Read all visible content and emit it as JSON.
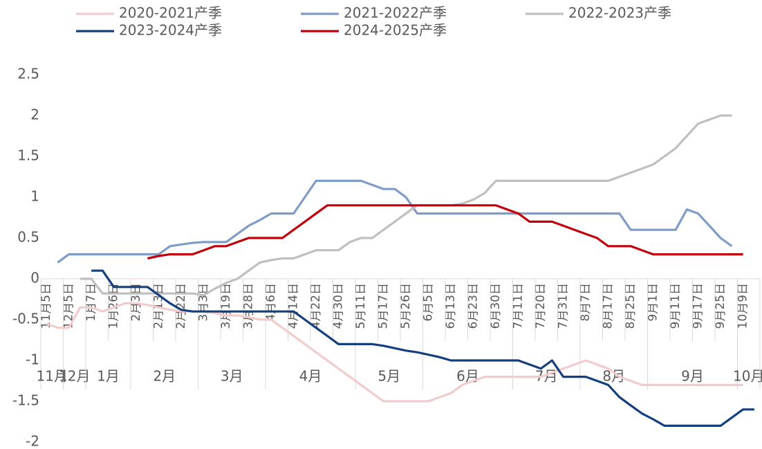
{
  "chart_data": {
    "type": "line",
    "categories": [
      "11月5日",
      null,
      "12月5日",
      null,
      "1月7日",
      null,
      "1月26日",
      null,
      "2月3日",
      null,
      "2月13日",
      null,
      "2月22日",
      null,
      "3月3日",
      null,
      "3月19日",
      null,
      "3月28日",
      null,
      "4月6日",
      null,
      "4月14日",
      null,
      "4月22日",
      null,
      "4月30日",
      null,
      "5月11日",
      null,
      "5月17日",
      null,
      "5月26日",
      null,
      "6月5日",
      null,
      "6月13日",
      null,
      "6月23日",
      null,
      "6月30日",
      null,
      "7月11日",
      null,
      "7月20日",
      null,
      "7月31日",
      null,
      "8月7日",
      null,
      "8月17日",
      null,
      "8月25日",
      null,
      "9月1日",
      null,
      "9月11日",
      null,
      "9月17日",
      null,
      "9月25日",
      null,
      "10月9日",
      null
    ],
    "groups": [
      {
        "label": "11月",
        "count": 2
      },
      {
        "label": "12月",
        "count": 2
      },
      {
        "label": "1月",
        "count": 4
      },
      {
        "label": "2月",
        "count": 6
      },
      {
        "label": "3月",
        "count": 6
      },
      {
        "label": "4月",
        "count": 8
      },
      {
        "label": "5月",
        "count": 6
      },
      {
        "label": "6月",
        "count": 8
      },
      {
        "label": "7月",
        "count": 6
      },
      {
        "label": "8月",
        "count": 6
      },
      {
        "label": "9月",
        "count": 8
      },
      {
        "label": "10月",
        "count": 2
      }
    ],
    "series": [
      {
        "name": "2020-2021产季",
        "color": "#f2cccc",
        "values": [
          -0.55,
          -0.6,
          -0.6,
          -0.35,
          -0.35,
          -0.4,
          -0.35,
          -0.3,
          -0.3,
          -0.32,
          -0.35,
          -0.38,
          -0.4,
          -0.4,
          -0.4,
          -0.42,
          -0.45,
          -0.45,
          -0.47,
          -0.5,
          -0.5,
          -0.6,
          -0.7,
          -0.8,
          -0.9,
          -1.0,
          -1.1,
          -1.2,
          -1.3,
          -1.4,
          -1.5,
          -1.5,
          -1.5,
          -1.5,
          -1.5,
          -1.45,
          -1.4,
          -1.3,
          -1.25,
          -1.2,
          -1.2,
          -1.2,
          -1.2,
          -1.2,
          -1.2,
          -1.15,
          -1.1,
          -1.05,
          -1.0,
          -1.05,
          -1.1,
          -1.2,
          -1.25,
          -1.3,
          -1.3,
          -1.3,
          -1.3,
          -1.3,
          -1.3,
          -1.3,
          -1.3,
          -1.3,
          -1.3,
          null
        ]
      },
      {
        "name": "2021-2022产季",
        "color": "#7f9cc8",
        "values": [
          null,
          0.2,
          0.3,
          0.3,
          0.3,
          0.3,
          0.3,
          0.3,
          0.3,
          0.3,
          0.3,
          0.4,
          0.42,
          0.44,
          0.45,
          0.45,
          0.45,
          0.55,
          0.65,
          0.72,
          0.8,
          0.8,
          0.8,
          1.0,
          1.2,
          1.2,
          1.2,
          1.2,
          1.2,
          1.15,
          1.1,
          1.1,
          1.0,
          0.8,
          0.8,
          0.8,
          0.8,
          0.8,
          0.8,
          0.8,
          0.8,
          0.8,
          0.8,
          0.8,
          0.8,
          0.8,
          0.8,
          0.8,
          0.8,
          0.8,
          0.8,
          0.8,
          0.6,
          0.6,
          0.6,
          0.6,
          0.6,
          0.85,
          0.8,
          0.65,
          0.5,
          0.4,
          null,
          null
        ]
      },
      {
        "name": "2022-2023产季",
        "color": "#bfbfbf",
        "values": [
          null,
          null,
          null,
          0,
          0,
          -0.18,
          -0.18,
          -0.18,
          -0.18,
          -0.18,
          -0.18,
          -0.18,
          -0.18,
          -0.18,
          -0.2,
          -0.12,
          -0.05,
          0,
          0.1,
          0.2,
          0.23,
          0.25,
          0.25,
          0.3,
          0.35,
          0.35,
          0.35,
          0.45,
          0.5,
          0.5,
          0.6,
          0.7,
          0.8,
          0.9,
          0.9,
          0.9,
          0.9,
          0.92,
          0.97,
          1.05,
          1.2,
          1.2,
          1.2,
          1.2,
          1.2,
          1.2,
          1.2,
          1.2,
          1.2,
          1.2,
          1.2,
          1.25,
          1.3,
          1.35,
          1.4,
          1.5,
          1.6,
          1.75,
          1.9,
          1.95,
          2.0,
          2.0,
          null,
          null
        ]
      },
      {
        "name": "2023-2024产季",
        "color": "#143f7e",
        "values": [
          null,
          null,
          null,
          null,
          0.1,
          0.1,
          -0.1,
          -0.1,
          -0.1,
          -0.1,
          -0.2,
          -0.3,
          -0.38,
          -0.4,
          -0.4,
          -0.4,
          -0.4,
          -0.4,
          -0.4,
          -0.4,
          -0.4,
          -0.4,
          -0.4,
          -0.5,
          -0.6,
          -0.7,
          -0.8,
          -0.8,
          -0.8,
          -0.8,
          -0.82,
          -0.85,
          -0.88,
          -0.9,
          -0.93,
          -0.96,
          -1.0,
          -1.0,
          -1.0,
          -1.0,
          -1.0,
          -1.0,
          -1.0,
          -1.05,
          -1.1,
          -1.0,
          -1.2,
          -1.2,
          -1.2,
          -1.25,
          -1.3,
          -1.45,
          -1.55,
          -1.65,
          -1.72,
          -1.8,
          -1.8,
          -1.8,
          -1.8,
          -1.8,
          -1.8,
          -1.7,
          -1.6,
          -1.6
        ]
      },
      {
        "name": "2024-2025产季",
        "color": "#c0000a",
        "values": [
          null,
          null,
          null,
          null,
          null,
          null,
          null,
          null,
          null,
          0.25,
          0.28,
          0.3,
          0.3,
          0.3,
          0.35,
          0.4,
          0.4,
          0.45,
          0.5,
          0.5,
          0.5,
          0.5,
          0.6,
          0.7,
          0.8,
          0.9,
          0.9,
          0.9,
          0.9,
          0.9,
          0.9,
          0.9,
          0.9,
          0.9,
          0.9,
          0.9,
          0.9,
          0.9,
          0.9,
          0.9,
          0.9,
          0.85,
          0.8,
          0.7,
          0.7,
          0.7,
          0.65,
          0.6,
          0.55,
          0.5,
          0.4,
          0.4,
          0.4,
          0.35,
          0.3,
          0.3,
          0.3,
          0.3,
          0.3,
          0.3,
          0.3,
          0.3,
          0.3,
          null
        ]
      }
    ],
    "ylim": [
      -2,
      2.5
    ],
    "yticks": [
      -2,
      -1.5,
      -1,
      -0.5,
      0,
      0.5,
      1,
      1.5,
      2,
      2.5
    ]
  }
}
